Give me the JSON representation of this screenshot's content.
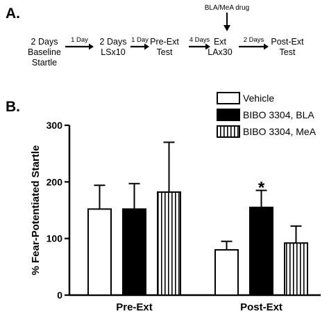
{
  "panel_a": {
    "label": "A.",
    "drug_label": "BLA/MeA drug",
    "steps": [
      {
        "lines": [
          "2 Days",
          "Baseline",
          "Startle"
        ]
      },
      {
        "lines": [
          "2 Days",
          "LSx10"
        ]
      },
      {
        "lines": [
          "Pre-Ext",
          "Test"
        ]
      },
      {
        "lines": [
          "Ext",
          "LAx30"
        ]
      },
      {
        "lines": [
          "Post-Ext",
          "Test"
        ]
      }
    ],
    "arrows": [
      "1 Day",
      "1 Day",
      "4 Days",
      "2 Days"
    ]
  },
  "panel_b": {
    "label": "B."
  },
  "chart_data": {
    "type": "bar",
    "categories": [
      "Pre-Ext",
      "Post-Ext"
    ],
    "series": [
      {
        "name": "Vehicle",
        "values": [
          152,
          80
        ],
        "errors": [
          42,
          15
        ],
        "fill": "white"
      },
      {
        "name": "BIBO 3304, BLA",
        "values": [
          152,
          155
        ],
        "errors": [
          45,
          30
        ],
        "fill": "black"
      },
      {
        "name": "BIBO 3304, MeA",
        "values": [
          182,
          92
        ],
        "errors": [
          88,
          30
        ],
        "fill": "vertical-stripes"
      }
    ],
    "ylabel": "% Fear-Potentiated Startle",
    "xlabel": "",
    "ylim": [
      0,
      300
    ],
    "yticks": [
      0,
      100,
      200,
      300
    ],
    "annotations": [
      {
        "text": "*",
        "category": "Post-Ext",
        "series": "BIBO 3304, BLA"
      }
    ],
    "legend_position": "top-right",
    "grid": false
  }
}
